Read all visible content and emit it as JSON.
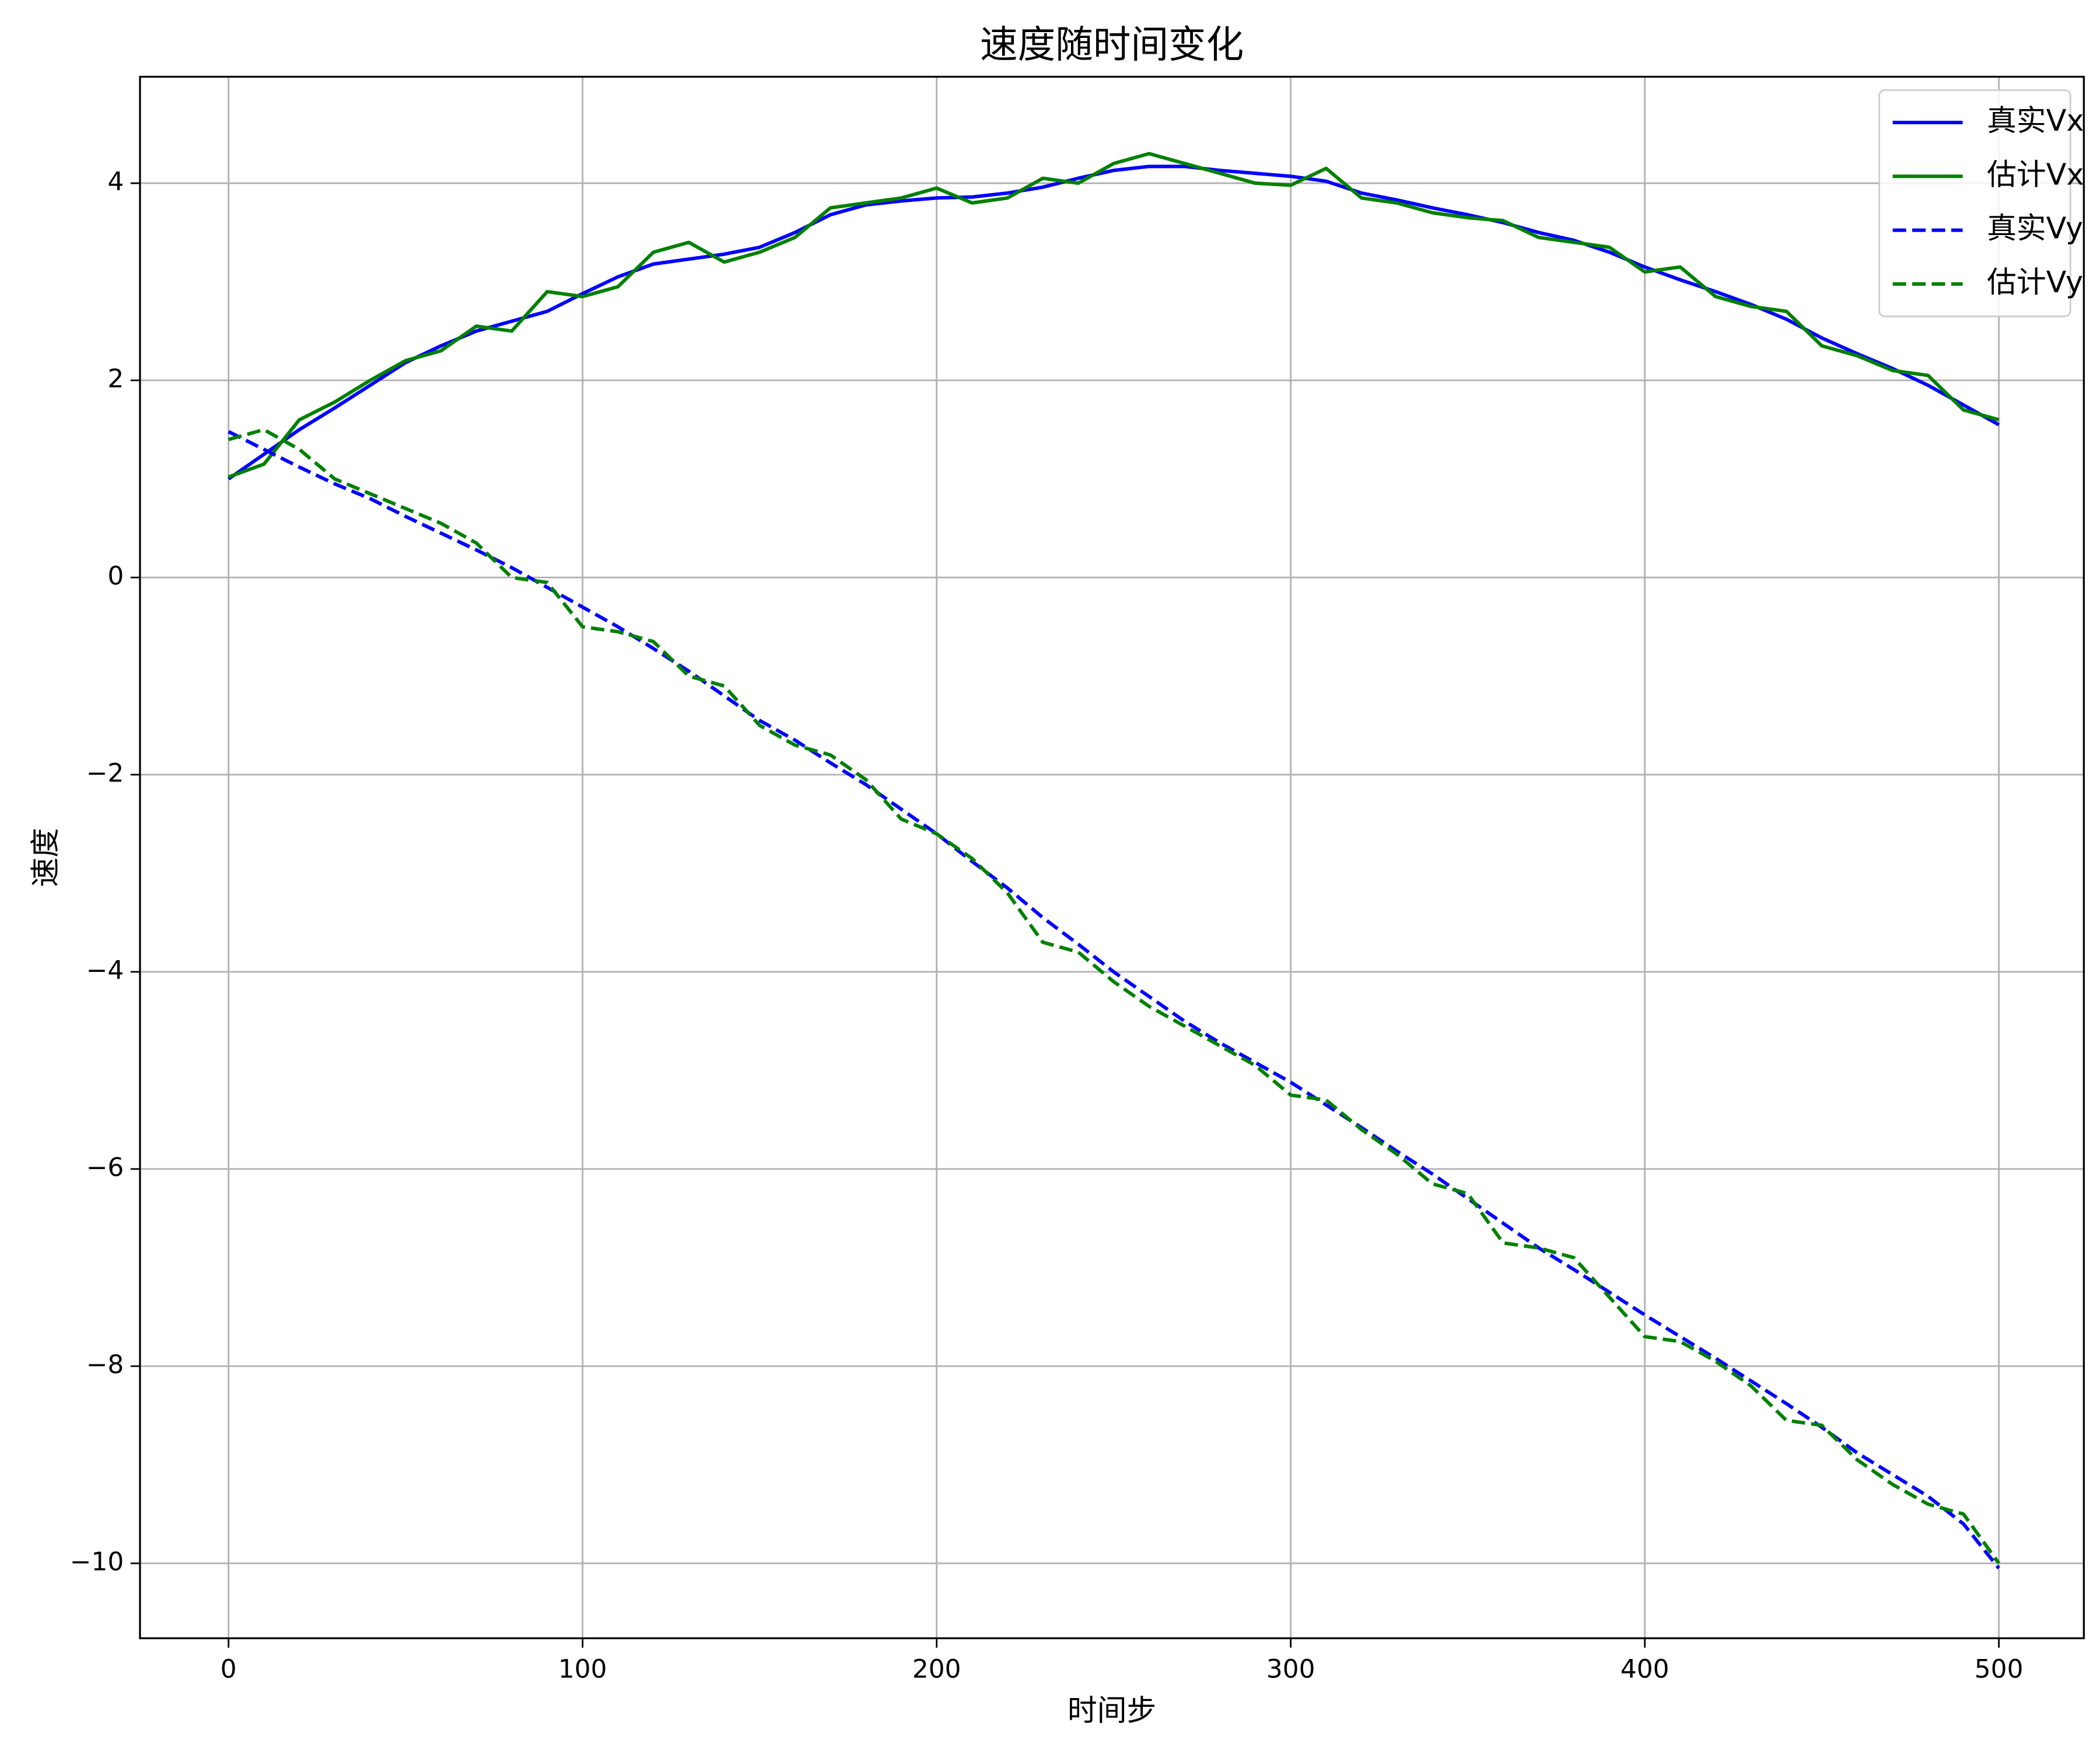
{
  "chart_data": {
    "type": "line",
    "title": "速度随时间变化",
    "xlabel": "时间步",
    "ylabel": "速度",
    "x": [
      0,
      10,
      20,
      30,
      40,
      50,
      60,
      70,
      80,
      90,
      100,
      110,
      120,
      130,
      140,
      150,
      160,
      170,
      180,
      190,
      200,
      210,
      220,
      230,
      240,
      250,
      260,
      270,
      280,
      290,
      300,
      310,
      320,
      330,
      340,
      350,
      360,
      370,
      380,
      390,
      400,
      410,
      420,
      430,
      440,
      450,
      460,
      470,
      480,
      490,
      500
    ],
    "series": [
      {
        "name": "真实Vx",
        "color": "#0000ff",
        "dashed": false,
        "values": [
          1.0,
          1.25,
          1.5,
          1.72,
          1.95,
          2.18,
          2.35,
          2.5,
          2.6,
          2.7,
          2.88,
          3.05,
          3.18,
          3.23,
          3.28,
          3.35,
          3.5,
          3.68,
          3.78,
          3.82,
          3.85,
          3.86,
          3.9,
          3.96,
          4.05,
          4.13,
          4.17,
          4.17,
          4.13,
          4.1,
          4.07,
          4.02,
          3.9,
          3.83,
          3.75,
          3.68,
          3.6,
          3.5,
          3.42,
          3.3,
          3.15,
          3.02,
          2.9,
          2.77,
          2.62,
          2.43,
          2.27,
          2.12,
          1.95,
          1.75,
          1.55
        ]
      },
      {
        "name": "估计Vx",
        "color": "#008000",
        "dashed": false,
        "values": [
          1.02,
          1.15,
          1.6,
          1.78,
          2.0,
          2.2,
          2.3,
          2.55,
          2.5,
          2.9,
          2.85,
          2.95,
          3.3,
          3.4,
          3.2,
          3.3,
          3.45,
          3.75,
          3.8,
          3.85,
          3.95,
          3.8,
          3.85,
          4.05,
          4.0,
          4.2,
          4.3,
          4.2,
          4.1,
          4.0,
          3.98,
          4.15,
          3.85,
          3.8,
          3.7,
          3.65,
          3.62,
          3.45,
          3.4,
          3.35,
          3.1,
          3.15,
          2.85,
          2.75,
          2.7,
          2.35,
          2.25,
          2.1,
          2.05,
          1.7,
          1.6
        ]
      },
      {
        "name": "真实Vy",
        "color": "#0000ff",
        "dashed": true,
        "values": [
          1.48,
          1.3,
          1.12,
          0.95,
          0.8,
          0.62,
          0.45,
          0.28,
          0.1,
          -0.1,
          -0.3,
          -0.5,
          -0.72,
          -0.95,
          -1.2,
          -1.45,
          -1.65,
          -1.88,
          -2.1,
          -2.35,
          -2.6,
          -2.88,
          -3.15,
          -3.45,
          -3.72,
          -4.0,
          -4.25,
          -4.5,
          -4.72,
          -4.92,
          -5.12,
          -5.35,
          -5.58,
          -5.82,
          -6.05,
          -6.3,
          -6.55,
          -6.8,
          -7.02,
          -7.25,
          -7.48,
          -7.7,
          -7.92,
          -8.15,
          -8.38,
          -8.62,
          -8.88,
          -9.1,
          -9.32,
          -9.6,
          -10.05
        ]
      },
      {
        "name": "估计Vy",
        "color": "#008000",
        "dashed": true,
        "values": [
          1.4,
          1.5,
          1.3,
          1.0,
          0.85,
          0.7,
          0.55,
          0.35,
          0.0,
          -0.05,
          -0.5,
          -0.55,
          -0.65,
          -1.0,
          -1.1,
          -1.5,
          -1.7,
          -1.8,
          -2.05,
          -2.45,
          -2.6,
          -2.85,
          -3.2,
          -3.7,
          -3.8,
          -4.1,
          -4.35,
          -4.55,
          -4.75,
          -4.95,
          -5.25,
          -5.3,
          -5.6,
          -5.85,
          -6.15,
          -6.25,
          -6.75,
          -6.8,
          -6.9,
          -7.3,
          -7.7,
          -7.75,
          -7.95,
          -8.2,
          -8.55,
          -8.6,
          -8.95,
          -9.2,
          -9.4,
          -9.5,
          -10.0
        ]
      }
    ],
    "xlim": [
      -25,
      524
    ],
    "ylim": [
      -10.76,
      5.08
    ],
    "xticks": [
      0,
      100,
      200,
      300,
      400,
      500
    ],
    "yticks": [
      {
        "value": -10,
        "label": "−10"
      },
      {
        "value": -8,
        "label": "−8"
      },
      {
        "value": -6,
        "label": "−6"
      },
      {
        "value": -4,
        "label": "−4"
      },
      {
        "value": -2,
        "label": "−2"
      },
      0,
      2,
      4
    ],
    "grid": true,
    "legend": "upper right"
  }
}
